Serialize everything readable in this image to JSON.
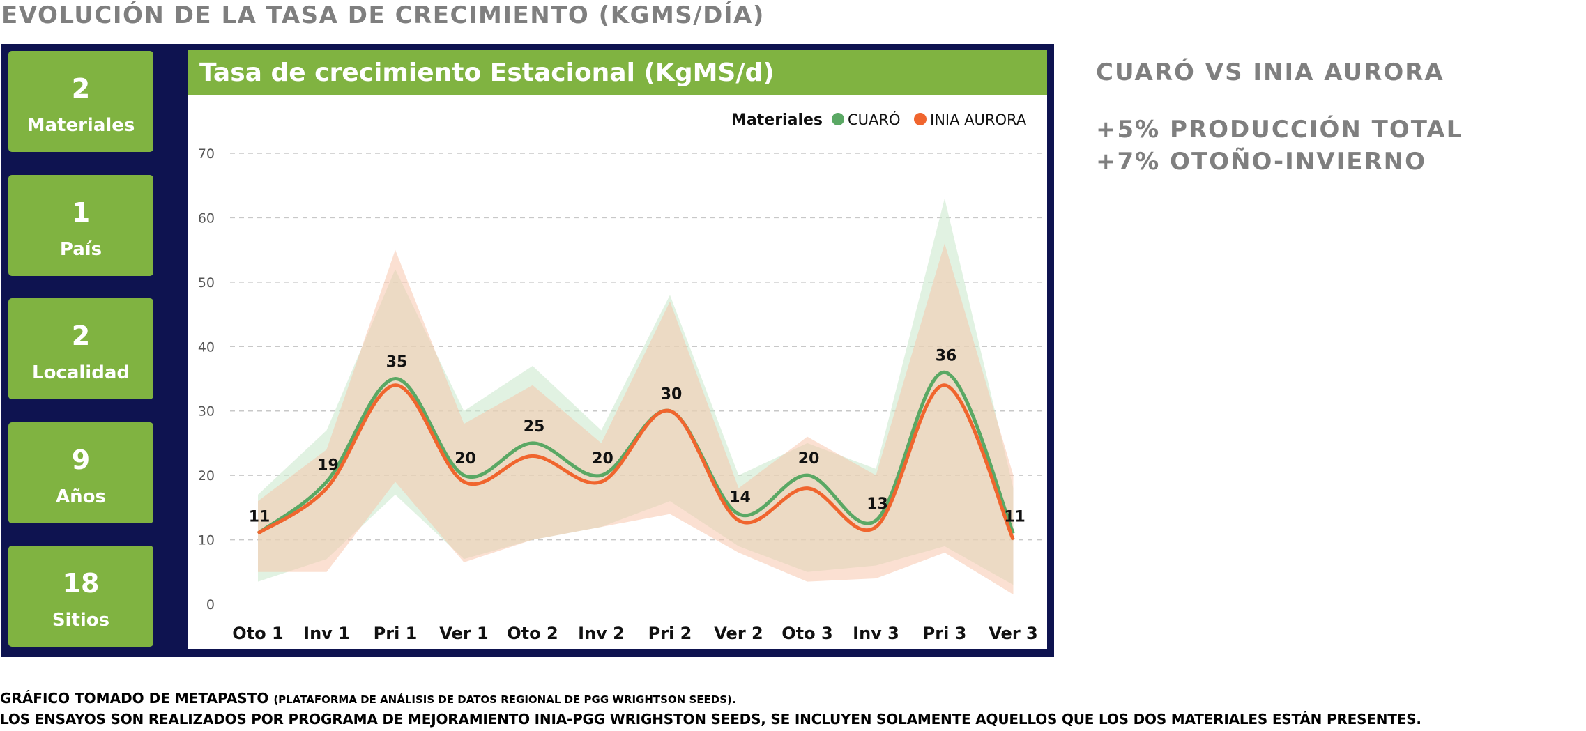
{
  "page": {
    "title": "EVOLUCIÓN DE LA TASA DE CRECIMIENTO (KGMS/DÍA)"
  },
  "kpis": [
    {
      "value": "2",
      "label": "Materiales"
    },
    {
      "value": "1",
      "label": "País"
    },
    {
      "value": "2",
      "label": "Localidad"
    },
    {
      "value": "9",
      "label": "Años"
    },
    {
      "value": "18",
      "label": "Sitios"
    }
  ],
  "comparison": {
    "title": "CUARÓ VS INIA AURORA",
    "stats": [
      "+5% PRODUCCIÓN TOTAL",
      "+7% OTOÑO-INVIERNO"
    ]
  },
  "footnotes": {
    "line1_main": "GRÁFICO TOMADO DE METAPASTO",
    "line1_small": "(PLATAFORMA DE ANÁLISIS DE DATOS REGIONAL DE PGG WRIGHTSON SEEDS).",
    "line2": "LOS ENSAYOS SON REALIZADOS POR PROGRAMA DE MEJORAMIENTO INIA-PGG WRIGHSTON SEEDS,  SE INCLUYEN SOLAMENTE AQUELLOS QUE LOS DOS MATERIALES ESTÁN PRESENTES."
  },
  "colors": {
    "cuaro": "#5aa864",
    "inia_aurora": "#f0652e",
    "cuaro_band": "#cdeacf",
    "inia_band": "#f8c2a6",
    "header_green": "#80b341",
    "dashboard_bg": "#0e1350"
  },
  "chart_data": {
    "type": "line",
    "title": "Tasa de crecimiento Estacional (KgMS/d)",
    "legend_title": "Materiales",
    "legend_position": "top-right",
    "categories": [
      "Oto 1",
      "Inv 1",
      "Pri 1",
      "Ver 1",
      "Oto 2",
      "Inv 2",
      "Pri 2",
      "Ver 2",
      "Oto 3",
      "Inv 3",
      "Pri 3",
      "Ver 3"
    ],
    "ylim": [
      0,
      70
    ],
    "yticks": [
      0,
      10,
      20,
      30,
      40,
      50,
      60,
      70
    ],
    "grid": true,
    "data_labels": [
      "11",
      "19",
      "35",
      "20",
      "25",
      "20",
      "30",
      "14",
      "20",
      "13",
      "36",
      "11"
    ],
    "series": [
      {
        "name": "CUARÓ",
        "values": [
          11,
          19,
          35,
          20,
          25,
          20,
          30,
          14,
          20,
          13,
          36,
          11
        ],
        "band_upper": [
          17,
          27,
          52,
          30,
          37,
          27,
          48,
          20,
          25,
          21,
          63,
          18
        ],
        "band_lower": [
          3.5,
          7,
          17,
          7,
          10,
          12,
          16,
          9,
          5,
          6,
          9,
          3
        ]
      },
      {
        "name": "INIA AURORA",
        "values": [
          11,
          18,
          34,
          19,
          23,
          19,
          30,
          13,
          18,
          12,
          34,
          10
        ],
        "band_upper": [
          16,
          24,
          55,
          28,
          34,
          25,
          47,
          18,
          26,
          20,
          56,
          20
        ],
        "band_lower": [
          5,
          5,
          19,
          6.5,
          10,
          12,
          14,
          8,
          3.5,
          4,
          8,
          1.5
        ]
      }
    ]
  }
}
